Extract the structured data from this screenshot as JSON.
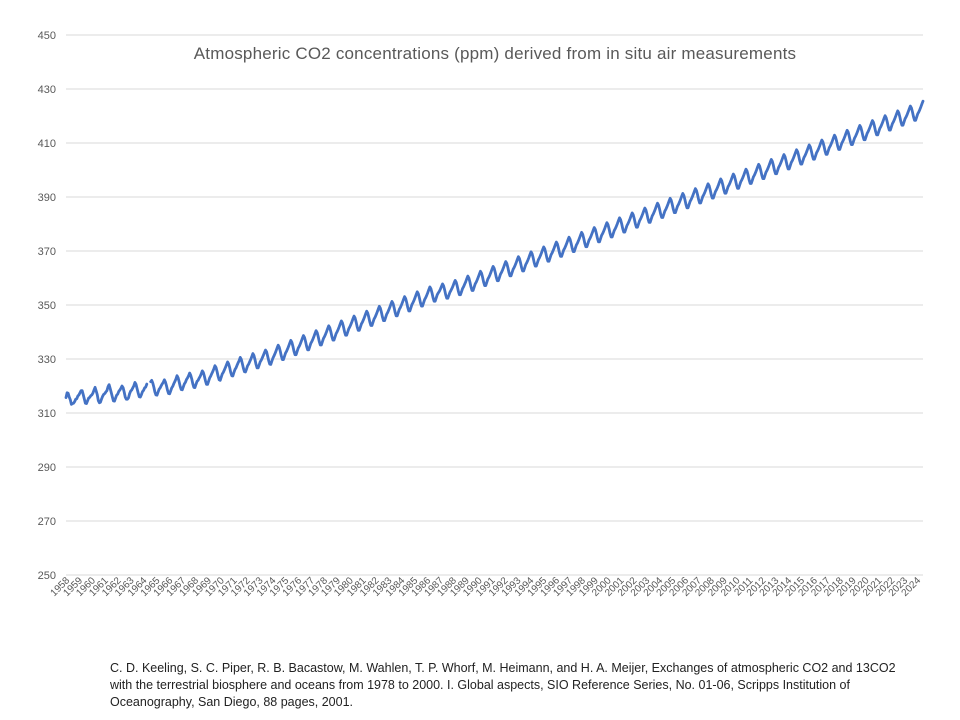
{
  "chart_data": {
    "type": "line",
    "title": "Atmospheric CO2 concentrations (ppm) derived from in situ air measurements",
    "xlabel": "",
    "ylabel": "",
    "ylim": [
      250,
      450
    ],
    "y_ticks": [
      250,
      270,
      290,
      310,
      330,
      350,
      370,
      390,
      410,
      430,
      450
    ],
    "x_tick_labels": [
      "1958",
      "1959",
      "1960",
      "1961",
      "1962",
      "1963",
      "1964",
      "1965",
      "1966",
      "1967",
      "1968",
      "1969",
      "1970",
      "1971",
      "1972",
      "1973",
      "1974",
      "1975",
      "1976",
      "1977",
      "1978",
      "1979",
      "1980",
      "1981",
      "1982",
      "1983",
      "1984",
      "1985",
      "1986",
      "1987",
      "1988",
      "1989",
      "1990",
      "1991",
      "1992",
      "1993",
      "1994",
      "1995",
      "1996",
      "1997",
      "1998",
      "1999",
      "2000",
      "2001",
      "2002",
      "2003",
      "2004",
      "2005",
      "2006",
      "2007",
      "2008",
      "2009",
      "2010",
      "2011",
      "2012",
      "2013",
      "2014",
      "2015",
      "2016",
      "2017",
      "2018",
      "2019",
      "2020",
      "2021",
      "2022",
      "2023",
      "2024"
    ],
    "grid": true,
    "legend": "none",
    "series": [
      {
        "x_start": 1958.2,
        "x_end": 1964.45,
        "x_step_months": 1,
        "values": [
          315.7,
          317.5,
          317.3,
          315.9,
          314.9,
          313.2,
          313.5,
          313.6,
          314.2,
          315.1,
          315.3,
          316.3,
          316.7,
          317.5,
          318.3,
          318.3,
          316.8,
          315.2,
          313.6,
          313.5,
          314.5,
          315.5,
          315.8,
          316.4,
          316.7,
          317.4,
          318.5,
          319.5,
          318.2,
          316.8,
          314.6,
          313.8,
          314.0,
          315.2,
          316.2,
          316.9,
          317.2,
          317.8,
          318.3,
          319.7,
          320.5,
          319.1,
          317.6,
          316.0,
          314.5,
          314.4,
          315.5,
          316.6,
          317.0,
          318.0,
          318.5,
          319.2,
          320.0,
          319.4,
          317.8,
          315.9,
          315.1,
          315.1,
          315.6,
          317.1,
          318.1,
          318.5,
          319.3,
          320.1,
          321.3,
          320.6,
          319.0,
          317.4,
          316.0,
          315.9,
          316.8,
          317.9,
          318.4,
          319.3,
          319.6,
          320.7
        ]
      },
      {
        "x_start": 1964.75,
        "x_end": 2024.5,
        "x_step_months": 1,
        "values": [
          321.6,
          322.1,
          321.1,
          319.6,
          317.8,
          316.7,
          316.6,
          317.7,
          318.8,
          319.3,
          320.1,
          320.8,
          321.4,
          322.3,
          321.5,
          320.1,
          318.4,
          317.2,
          317.1,
          318.2,
          319.3,
          319.9,
          320.9,
          321.7,
          322.6,
          323.8,
          323.1,
          321.6,
          319.9,
          318.7,
          318.6,
          319.7,
          320.8,
          321.4,
          322.4,
          323.0,
          323.8,
          324.8,
          324.0,
          322.6,
          320.8,
          319.5,
          319.4,
          320.6,
          321.7,
          322.1,
          322.9,
          323.6,
          324.5,
          325.6,
          325.0,
          323.6,
          321.9,
          320.6,
          320.6,
          321.8,
          323.0,
          323.7,
          324.6,
          325.4,
          326.4,
          327.5,
          326.9,
          325.4,
          323.6,
          322.3,
          322.1,
          323.3,
          324.5,
          325.1,
          326.0,
          326.9,
          327.9,
          328.9,
          328.2,
          326.8,
          325.0,
          323.8,
          323.7,
          325.0,
          326.1,
          326.7,
          327.7,
          328.6,
          329.4,
          330.6,
          329.9,
          328.3,
          326.6,
          325.3,
          325.2,
          326.3,
          327.5,
          328.1,
          329.0,
          329.9,
          330.9,
          332.0,
          331.3,
          329.8,
          328.0,
          326.7,
          326.7,
          327.8,
          329.0,
          329.6,
          330.5,
          331.4,
          332.4,
          333.3,
          332.7,
          331.1,
          329.4,
          328.1,
          328.0,
          329.2,
          330.3,
          331.1,
          332.0,
          333.0,
          334.1,
          335.1,
          334.4,
          332.9,
          331.1,
          329.8,
          329.8,
          331.0,
          332.2,
          332.9,
          333.8,
          334.8,
          335.9,
          336.9,
          336.2,
          334.7,
          332.9,
          331.6,
          331.6,
          332.8,
          334.0,
          334.7,
          335.6,
          336.6,
          337.7,
          338.7,
          338.0,
          336.5,
          334.7,
          333.4,
          333.4,
          334.6,
          335.8,
          336.5,
          337.4,
          338.4,
          339.5,
          340.5,
          339.8,
          338.3,
          336.5,
          335.2,
          335.2,
          336.4,
          337.6,
          338.3,
          339.2,
          340.2,
          341.3,
          342.3,
          341.6,
          340.1,
          338.3,
          337.0,
          337.0,
          338.2,
          339.4,
          340.1,
          341.0,
          342.0,
          343.1,
          344.1,
          343.4,
          341.9,
          340.1,
          338.8,
          338.8,
          340.0,
          341.2,
          341.9,
          342.8,
          343.8,
          344.9,
          345.9,
          345.2,
          343.7,
          341.9,
          340.6,
          340.6,
          341.8,
          343.0,
          343.7,
          344.6,
          345.6,
          346.7,
          347.7,
          347.0,
          345.5,
          343.7,
          342.4,
          342.4,
          343.6,
          344.8,
          345.5,
          346.4,
          347.4,
          348.5,
          349.5,
          348.8,
          347.3,
          345.5,
          344.2,
          344.2,
          345.4,
          346.6,
          347.3,
          348.2,
          349.2,
          350.3,
          351.3,
          350.6,
          349.1,
          347.3,
          346.0,
          346.0,
          347.2,
          348.4,
          349.1,
          350.0,
          351.0,
          352.1,
          353.1,
          352.4,
          350.9,
          349.1,
          347.8,
          347.8,
          349.0,
          350.2,
          350.9,
          351.8,
          352.8,
          353.9,
          354.9,
          354.2,
          352.7,
          350.9,
          349.6,
          349.6,
          350.8,
          352.0,
          352.7,
          353.6,
          354.6,
          355.7,
          356.7,
          356.0,
          354.5,
          352.7,
          351.4,
          351.4,
          352.6,
          353.8,
          354.5,
          355.1,
          355.9,
          356.9,
          357.8,
          357.1,
          355.6,
          353.8,
          352.5,
          352.5,
          353.6,
          354.7,
          355.4,
          356.2,
          357.1,
          358.2,
          359.1,
          358.4,
          356.9,
          355.1,
          353.8,
          353.8,
          354.9,
          356.1,
          356.8,
          357.7,
          358.6,
          359.7,
          360.7,
          360.0,
          358.5,
          356.7,
          355.4,
          355.4,
          356.6,
          357.8,
          358.5,
          359.4,
          360.4,
          361.5,
          362.5,
          361.8,
          360.3,
          358.5,
          357.2,
          357.2,
          358.4,
          359.6,
          360.3,
          361.2,
          362.2,
          363.3,
          364.3,
          363.6,
          362.1,
          360.3,
          359.0,
          359.0,
          360.2,
          361.4,
          362.1,
          363.0,
          364.0,
          365.1,
          366.1,
          365.4,
          363.9,
          362.1,
          360.8,
          360.8,
          362.0,
          363.2,
          363.9,
          364.8,
          365.8,
          366.9,
          367.9,
          367.2,
          365.7,
          363.9,
          362.6,
          362.6,
          363.8,
          365.0,
          365.7,
          366.6,
          367.6,
          368.7,
          369.7,
          369.0,
          367.5,
          365.7,
          364.4,
          364.4,
          365.6,
          366.8,
          367.5,
          368.4,
          369.4,
          370.5,
          371.5,
          370.8,
          369.3,
          367.5,
          366.2,
          366.2,
          367.4,
          368.6,
          369.3,
          370.2,
          371.2,
          372.3,
          373.3,
          372.6,
          371.1,
          369.3,
          368.0,
          368.0,
          369.2,
          370.4,
          371.1,
          372.0,
          373.0,
          374.1,
          375.1,
          374.4,
          372.9,
          371.1,
          369.8,
          369.8,
          371.0,
          372.2,
          372.9,
          373.8,
          374.8,
          375.9,
          376.9,
          376.2,
          374.7,
          372.9,
          371.6,
          371.6,
          372.8,
          374.0,
          374.7,
          375.6,
          376.6,
          377.7,
          378.7,
          378.0,
          376.5,
          374.7,
          373.4,
          373.4,
          374.6,
          375.8,
          376.5,
          377.4,
          378.4,
          379.5,
          380.5,
          379.8,
          378.3,
          376.5,
          375.2,
          375.2,
          376.4,
          377.6,
          378.3,
          379.2,
          380.2,
          381.3,
          382.3,
          381.6,
          380.1,
          378.3,
          377.0,
          377.0,
          378.2,
          379.4,
          380.1,
          381.0,
          382.0,
          383.1,
          384.1,
          383.4,
          381.9,
          380.1,
          378.8,
          378.8,
          380.0,
          381.2,
          381.9,
          382.8,
          383.8,
          384.9,
          385.9,
          385.2,
          383.7,
          381.9,
          380.6,
          380.6,
          381.8,
          383.0,
          383.7,
          384.6,
          385.6,
          386.7,
          387.7,
          387.0,
          385.5,
          383.7,
          382.4,
          382.4,
          383.6,
          384.8,
          385.5,
          386.4,
          387.4,
          388.5,
          389.5,
          388.8,
          387.3,
          385.5,
          384.2,
          384.2,
          385.4,
          386.6,
          387.3,
          388.2,
          389.2,
          390.3,
          391.3,
          390.6,
          389.1,
          387.3,
          386.0,
          386.0,
          387.2,
          388.4,
          389.1,
          390.0,
          391.0,
          392.1,
          393.1,
          392.4,
          390.9,
          389.1,
          387.8,
          387.8,
          389.0,
          390.2,
          390.9,
          391.8,
          392.8,
          393.9,
          394.9,
          394.2,
          392.7,
          390.9,
          389.6,
          389.6,
          390.8,
          392.0,
          392.7,
          393.6,
          394.6,
          395.7,
          396.7,
          396.0,
          394.5,
          392.7,
          391.4,
          391.4,
          392.6,
          393.8,
          394.5,
          395.4,
          396.4,
          397.5,
          398.5,
          397.8,
          396.3,
          394.5,
          393.2,
          393.2,
          394.4,
          395.6,
          396.3,
          397.2,
          398.2,
          399.3,
          400.3,
          399.6,
          398.1,
          396.3,
          395.0,
          395.0,
          396.2,
          397.4,
          398.1,
          399.0,
          400.0,
          401.1,
          402.1,
          401.4,
          399.9,
          398.1,
          396.8,
          396.8,
          398.0,
          399.2,
          399.9,
          400.8,
          401.8,
          402.9,
          403.9,
          403.2,
          401.7,
          399.9,
          398.6,
          398.6,
          399.8,
          401.0,
          401.7,
          402.6,
          403.6,
          404.7,
          405.7,
          405.0,
          403.5,
          401.7,
          400.4,
          400.4,
          401.6,
          402.8,
          403.5,
          404.4,
          405.4,
          406.5,
          407.5,
          406.8,
          405.3,
          403.5,
          402.2,
          402.2,
          403.4,
          404.6,
          405.3,
          406.2,
          407.2,
          408.3,
          409.3,
          408.6,
          407.1,
          405.3,
          404.0,
          404.0,
          405.2,
          406.4,
          407.1,
          408.0,
          409.0,
          410.1,
          411.1,
          410.4,
          408.9,
          407.1,
          405.8,
          405.8,
          407.0,
          408.2,
          408.9,
          409.8,
          410.8,
          411.9,
          412.9,
          412.2,
          410.7,
          408.9,
          407.6,
          407.6,
          408.8,
          410.0,
          410.7,
          411.6,
          412.6,
          413.7,
          414.7,
          414.0,
          412.5,
          410.7,
          409.4,
          409.4,
          410.6,
          411.8,
          412.5,
          413.4,
          414.4,
          415.5,
          416.5,
          415.8,
          414.3,
          412.5,
          411.2,
          411.2,
          412.4,
          413.6,
          414.3,
          415.2,
          416.2,
          417.3,
          418.3,
          417.6,
          416.1,
          414.3,
          413.0,
          413.0,
          414.2,
          415.4,
          416.1,
          417.0,
          418.0,
          419.1,
          420.1,
          419.4,
          417.9,
          416.1,
          414.8,
          414.8,
          416.0,
          417.2,
          417.9,
          418.8,
          419.8,
          420.9,
          421.9,
          421.2,
          419.7,
          417.9,
          416.6,
          416.6,
          417.8,
          419.0,
          419.7,
          420.6,
          421.6,
          422.7,
          423.7,
          423.0,
          421.5,
          419.7,
          418.4,
          418.4,
          419.6,
          420.8,
          421.5,
          422.4,
          423.4,
          424.5,
          425.5
        ]
      }
    ],
    "line_color": "#4472c4",
    "grid_color": "#d9d9d9"
  },
  "citation": "C. D. Keeling, S. C. Piper, R. B. Bacastow, M. Wahlen, T. P. Whorf, M. Heimann, and H. A. Meijer, Exchanges of atmospheric CO2 and 13CO2 with the terrestrial biosphere and oceans from 1978 to 2000. I. Global aspects, SIO Reference Series, No. 01-06, Scripps Institution of Oceanography, San Diego, 88 pages, 2001."
}
